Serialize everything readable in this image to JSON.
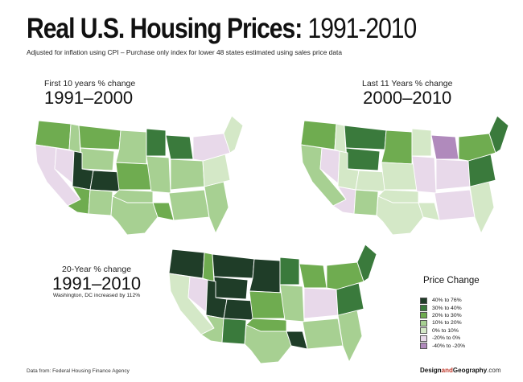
{
  "title": {
    "main": "Real U.S. Housing Prices:",
    "years": "1991-2010"
  },
  "subtitle": "Adjusted for inflation using CPI – Purchase only index for lower 48 states estimated using sales price data",
  "maps": {
    "first": {
      "caption": "First 10 years % change",
      "range": "1991–2000"
    },
    "last": {
      "caption": "Last 11 Years % change",
      "range": "2000–2010"
    },
    "twenty": {
      "caption": "20-Year % change",
      "range": "1991–2010",
      "note": "Washington, DC increased by 112%"
    }
  },
  "legend": {
    "title": "Price Change",
    "items": [
      {
        "label": "40% to 76%",
        "color": "#1f3d28"
      },
      {
        "label": "30% to 40%",
        "color": "#3a7a3c"
      },
      {
        "label": "20% to 30%",
        "color": "#6fac50"
      },
      {
        "label": "10% to 20%",
        "color": "#a7d092"
      },
      {
        "label": "0% to 10%",
        "color": "#d4e8c7"
      },
      {
        "label": "-20% to 0%",
        "color": "#e8d9ea"
      },
      {
        "label": "-40% to -20%",
        "color": "#b08abc"
      }
    ]
  },
  "footer": {
    "source": "Data from:  Federal Housing Finance Agency",
    "brand_a": "Design",
    "brand_b": "and",
    "brand_c": "Geography",
    "brand_d": ".com"
  }
}
